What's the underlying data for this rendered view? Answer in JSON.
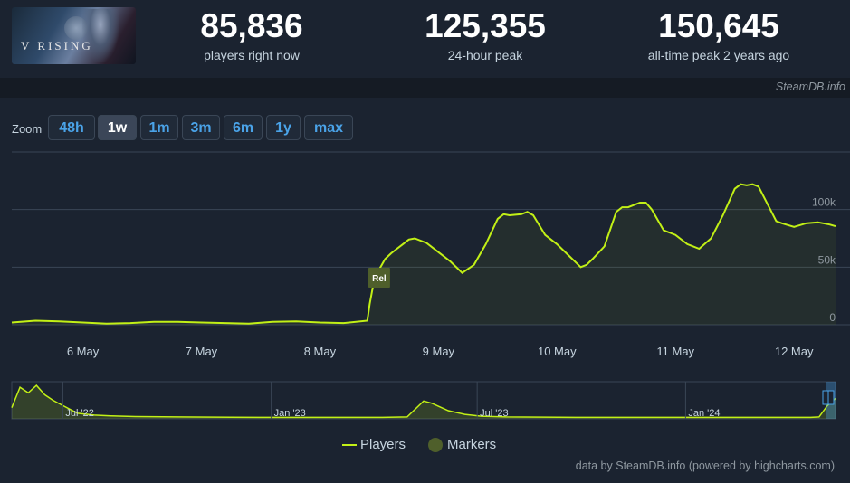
{
  "header": {
    "game_logo_text": "V RISING",
    "stats": [
      {
        "value": "85,836",
        "label": "players right now"
      },
      {
        "value": "125,355",
        "label": "24-hour peak"
      },
      {
        "value": "150,645",
        "label": "all-time peak 2 years ago"
      }
    ]
  },
  "credit": "SteamDB.info",
  "zoom": {
    "label": "Zoom",
    "buttons": [
      "48h",
      "1w",
      "1m",
      "3m",
      "6m",
      "1y",
      "max"
    ],
    "active": "1w"
  },
  "legend": {
    "players": "Players",
    "markers": "Markers"
  },
  "footer": "data by SteamDB.info (powered by highcharts.com)",
  "colors": {
    "line": "#c2f016",
    "marker": "#4f5f2b",
    "background": "#1b2330",
    "accent": "#4aa3e8"
  },
  "chart_data": [
    {
      "type": "line",
      "title": "",
      "series": [
        {
          "name": "Players",
          "x": [
            5.4,
            5.6,
            5.8,
            6.0,
            6.2,
            6.4,
            6.6,
            6.8,
            7.0,
            7.2,
            7.4,
            7.6,
            7.8,
            8.0,
            8.2,
            8.4,
            8.42,
            8.45,
            8.5,
            8.55,
            8.6,
            8.65,
            8.7,
            8.75,
            8.8,
            8.9,
            9.0,
            9.1,
            9.2,
            9.3,
            9.4,
            9.5,
            9.55,
            9.6,
            9.7,
            9.75,
            9.8,
            9.9,
            10.0,
            10.1,
            10.2,
            10.25,
            10.3,
            10.4,
            10.5,
            10.55,
            10.6,
            10.7,
            10.75,
            10.8,
            10.9,
            11.0,
            11.1,
            11.2,
            11.3,
            11.4,
            11.5,
            11.55,
            11.6,
            11.65,
            11.7,
            11.8,
            11.85,
            11.9,
            12.0,
            12.1,
            12.2,
            12.3,
            12.35
          ],
          "values": [
            2000,
            3500,
            3000,
            2000,
            1000,
            1500,
            2500,
            2500,
            2000,
            1500,
            1000,
            2500,
            3000,
            2000,
            1500,
            3500,
            18000,
            35000,
            48000,
            57000,
            62000,
            66000,
            70000,
            74000,
            75000,
            71000,
            63000,
            55000,
            45000,
            52000,
            70000,
            92000,
            96000,
            95000,
            96000,
            98000,
            95000,
            78000,
            70000,
            60000,
            50000,
            52000,
            57000,
            68000,
            98000,
            102000,
            102000,
            106000,
            106000,
            100000,
            82000,
            78000,
            70000,
            66000,
            75000,
            95000,
            118000,
            122000,
            121000,
            122000,
            120000,
            100000,
            90000,
            88000,
            85000,
            88000,
            89000,
            87000,
            85500
          ]
        }
      ],
      "markers": [
        {
          "label": "Rel",
          "x": 8.5
        }
      ],
      "xlabel": "",
      "ylabel": "",
      "xticks": [
        {
          "v": 6,
          "label": "6 May"
        },
        {
          "v": 7,
          "label": "7 May"
        },
        {
          "v": 8,
          "label": "8 May"
        },
        {
          "v": 9,
          "label": "9 May"
        },
        {
          "v": 10,
          "label": "10 May"
        },
        {
          "v": 11,
          "label": "11 May"
        },
        {
          "v": 12,
          "label": "12 May"
        }
      ],
      "yticks": [
        {
          "v": 0,
          "label": "0"
        },
        {
          "v": 50000,
          "label": "50k"
        },
        {
          "v": 100000,
          "label": "100k"
        }
      ],
      "xlim": [
        5.4,
        12.35
      ],
      "ylim": [
        0,
        150000
      ],
      "grid": true,
      "legend": "bottom-center"
    },
    {
      "type": "area",
      "title": "",
      "series": [
        {
          "name": "Players",
          "x": [
            0.0,
            0.01,
            0.02,
            0.03,
            0.04,
            0.05,
            0.06,
            0.08,
            0.1,
            0.12,
            0.15,
            0.2,
            0.3,
            0.4,
            0.45,
            0.48,
            0.5,
            0.51,
            0.52,
            0.53,
            0.55,
            0.57,
            0.6,
            0.7,
            0.8,
            0.9,
            0.97,
            0.98,
            0.99,
            1.0
          ],
          "values": [
            0.3,
            0.85,
            0.7,
            0.9,
            0.65,
            0.5,
            0.38,
            0.15,
            0.1,
            0.08,
            0.06,
            0.05,
            0.04,
            0.04,
            0.04,
            0.05,
            0.48,
            0.42,
            0.32,
            0.22,
            0.12,
            0.07,
            0.05,
            0.04,
            0.04,
            0.04,
            0.04,
            0.05,
            0.35,
            0.55
          ]
        }
      ],
      "xticks": [
        "Jul '22",
        "Jan '23",
        "Jul '23",
        "Jan '24"
      ],
      "ylim": [
        0,
        1
      ]
    }
  ]
}
